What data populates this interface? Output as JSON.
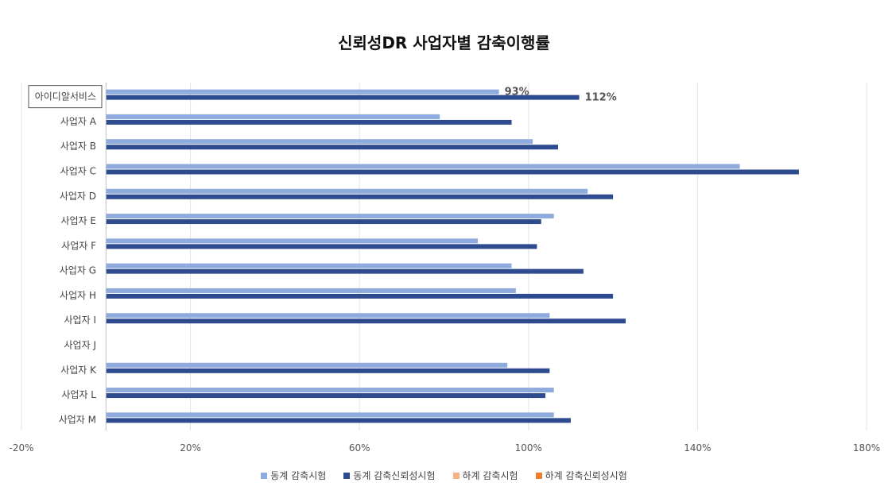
{
  "chart_data": {
    "type": "bar",
    "orientation": "horizontal",
    "title": "신뢰성DR 사업자별 감축이행률",
    "categories": [
      "아이디알서비스",
      "사업자 A",
      "사업자 B",
      "사업자 C",
      "사업자 D",
      "사업자 E",
      "사업자 F",
      "사업자 G",
      "사업자 H",
      "사업자 I",
      "사업자 J",
      "사업자 K",
      "사업자 L",
      "사업자 M"
    ],
    "highlighted_category": "아이디알서비스",
    "series": [
      {
        "name": "동계 감축시험",
        "color": "#8faadc",
        "values": [
          93,
          79,
          101,
          150,
          114,
          106,
          88,
          96,
          97,
          105,
          null,
          95,
          106,
          106
        ]
      },
      {
        "name": "동계 감축신뢰성시험",
        "color": "#2f4b8f",
        "values": [
          112,
          96,
          107,
          164,
          120,
          103,
          102,
          113,
          120,
          123,
          null,
          105,
          104,
          110
        ]
      },
      {
        "name": "하계 감축시험",
        "color": "#f4b183",
        "values": [
          null,
          null,
          null,
          null,
          null,
          null,
          null,
          null,
          null,
          null,
          null,
          null,
          null,
          null
        ]
      },
      {
        "name": "하계 감축신뢰성시험",
        "color": "#ed7d31",
        "values": [
          null,
          null,
          null,
          null,
          null,
          null,
          null,
          null,
          null,
          null,
          null,
          null,
          null,
          null
        ]
      }
    ],
    "data_labels": [
      {
        "category": "아이디알서비스",
        "series": "동계 감축시험",
        "text": "93%"
      },
      {
        "category": "아이디알서비스",
        "series": "동계 감축신뢰성시험",
        "text": "112%"
      }
    ],
    "x_axis": {
      "min": -20,
      "max": 180,
      "ticks": [
        -20,
        20,
        60,
        100,
        140,
        180
      ],
      "tick_labels": [
        "-20%",
        "20%",
        "60%",
        "100%",
        "140%",
        "180%"
      ],
      "category_axis_at": 0
    },
    "grid": true,
    "legend_position": "bottom"
  }
}
